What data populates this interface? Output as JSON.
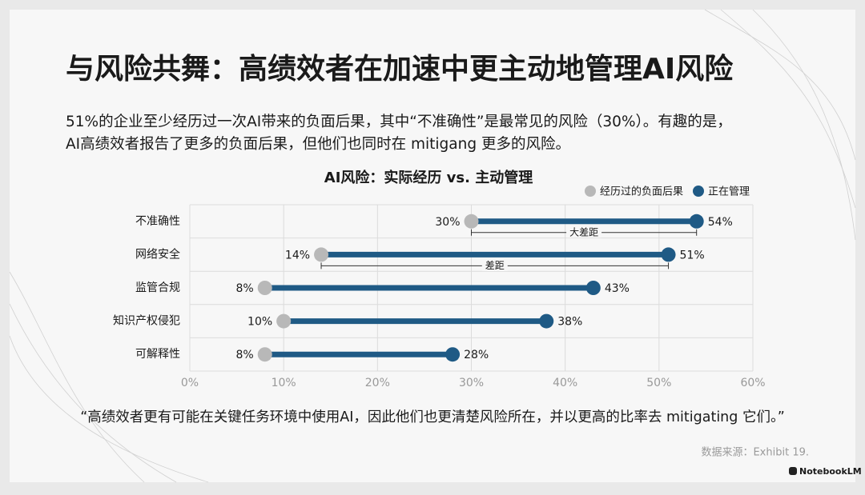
{
  "title": "与风险共舞：高绩效者在加速中更主动地管理AI风险",
  "subtitle": [
    "51%的企业至少经历过一次AI带来的负面后果，其中“不准确性”是最常见的风险（30%）。有趣的是，",
    "AI高绩效者报告了更多的负面后果，但他们也同时在 mitigang 更多的风险。"
  ],
  "chart_data": {
    "type": "dumbbell",
    "title": "AI风险：实际经历 vs. 主动管理",
    "categories": [
      "不准确性",
      "网络安全",
      "监管合规",
      "知识产权侵犯",
      "可解释性"
    ],
    "series": [
      {
        "name": "经历过的负面后果",
        "color": "#b8b8b8",
        "values": [
          30,
          14,
          8,
          10,
          8
        ],
        "value_labels": [
          "30%",
          "14%",
          "8%",
          "10%",
          "8%"
        ]
      },
      {
        "name": "正在管理",
        "color": "#1f5a85",
        "values": [
          54,
          51,
          43,
          38,
          28
        ],
        "value_labels": [
          "54%",
          "51%",
          "43%",
          "38%",
          "28%"
        ]
      }
    ],
    "xlim": [
      0,
      60
    ],
    "xticks": [
      {
        "value": 0,
        "label": "0%"
      },
      {
        "value": 10,
        "label": "10%"
      },
      {
        "value": 20,
        "label": "20%"
      },
      {
        "value": 30,
        "label": "30%"
      },
      {
        "value": 40,
        "label": "40%"
      },
      {
        "value": 50,
        "label": "50%"
      },
      {
        "value": 60,
        "label": "60%"
      }
    ],
    "grid": true,
    "legend": "top-right",
    "annotations": [
      {
        "text": "大差距"
      },
      {
        "text": "差距"
      }
    ]
  },
  "quote": "“高绩效者更有可能在关键任务环境中使用AI，因此他们也更清楚风险所在，并以更高的比率去 mitigating 它们。”",
  "source": "数据来源：Exhibit 19.",
  "branding": "NotebookLM"
}
